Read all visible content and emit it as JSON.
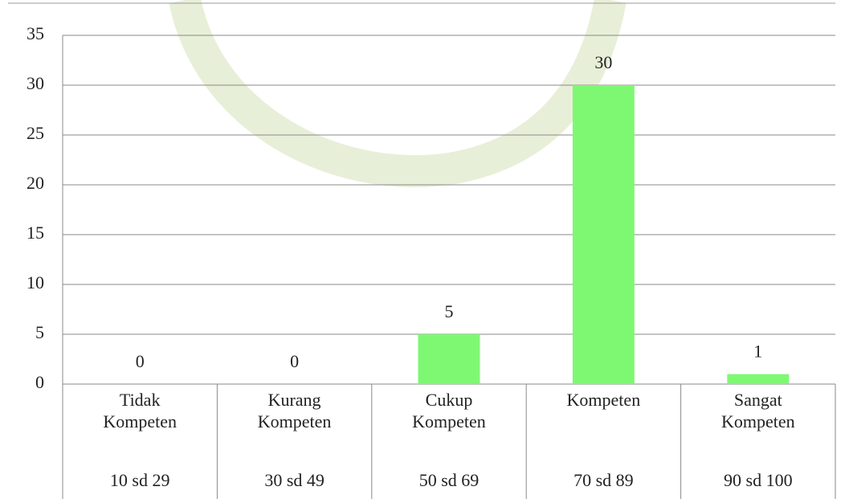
{
  "chart_data": {
    "type": "bar",
    "categories": [
      "Tidak Kompeten",
      "Kurang Kompeten",
      "Cukup Kompeten",
      "Kompeten",
      "Sangat Kompeten"
    ],
    "ranges": [
      "10 sd 29",
      "30 sd 49",
      "50 sd 69",
      "70 sd 89",
      "90 sd 100"
    ],
    "values": [
      0,
      0,
      5,
      30,
      1
    ],
    "color": "#7ef873",
    "ylim": [
      0,
      35
    ],
    "yticks": [
      0,
      5,
      10,
      15,
      20,
      25,
      30,
      35
    ],
    "grid": true
  }
}
